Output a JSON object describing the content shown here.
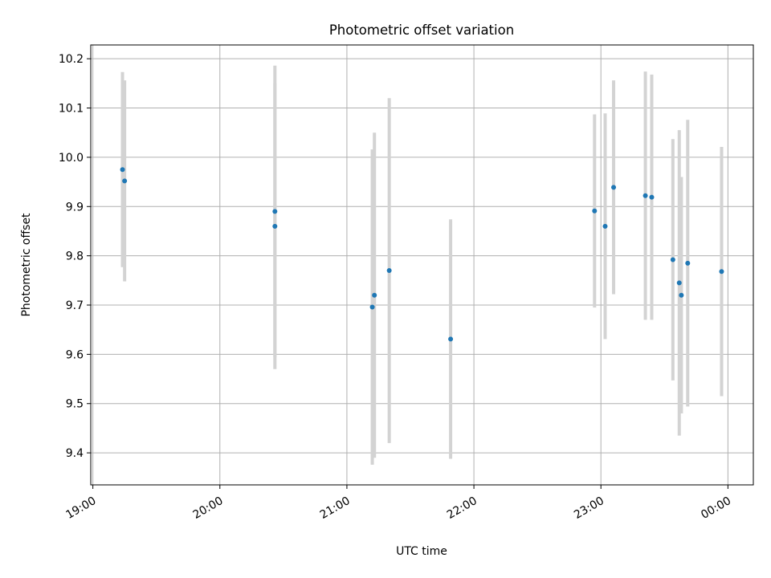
{
  "chart_data": {
    "type": "scatter",
    "title": "Photometric offset variation",
    "xlabel": "UTC time",
    "ylabel": "Photometric offset",
    "x_unit": "UTC time (HH:MM)",
    "xlim": [
      "18:59",
      "00:12"
    ],
    "ylim": [
      9.335,
      10.228
    ],
    "x_ticks": [
      "19:00",
      "20:00",
      "21:00",
      "22:00",
      "23:00",
      "00:00"
    ],
    "y_ticks": [
      "9.4",
      "9.5",
      "9.6",
      "9.7",
      "9.8",
      "9.9",
      "10.0",
      "10.1",
      "10.2"
    ],
    "grid": true,
    "marker_color": "#1f77b4",
    "errorbar_color": "#d3d3d3",
    "points": [
      {
        "time": "19:14",
        "y": 9.975,
        "err": 0.198
      },
      {
        "time": "19:15",
        "y": 9.952,
        "err": 0.204
      },
      {
        "time": "20:26",
        "y": 9.86,
        "err": 0.29
      },
      {
        "time": "20:26",
        "y": 9.89,
        "err": 0.296
      },
      {
        "time": "21:12",
        "y": 9.696,
        "err": 0.32
      },
      {
        "time": "21:13",
        "y": 9.72,
        "err": 0.33
      },
      {
        "time": "21:20",
        "y": 9.77,
        "err": 0.35
      },
      {
        "time": "21:49",
        "y": 9.631,
        "err": 0.243
      },
      {
        "time": "22:57",
        "y": 9.891,
        "err": 0.196
      },
      {
        "time": "23:02",
        "y": 9.86,
        "err": 0.229
      },
      {
        "time": "23:06",
        "y": 9.939,
        "err": 0.217
      },
      {
        "time": "23:21",
        "y": 9.922,
        "err": 0.252
      },
      {
        "time": "23:24",
        "y": 9.919,
        "err": 0.249
      },
      {
        "time": "23:34",
        "y": 9.792,
        "err": 0.245
      },
      {
        "time": "23:37",
        "y": 9.745,
        "err": 0.31
      },
      {
        "time": "23:38",
        "y": 9.72,
        "err": 0.24
      },
      {
        "time": "23:41",
        "y": 9.785,
        "err": 0.291
      },
      {
        "time": "23:57",
        "y": 9.768,
        "err": 0.253
      }
    ]
  }
}
